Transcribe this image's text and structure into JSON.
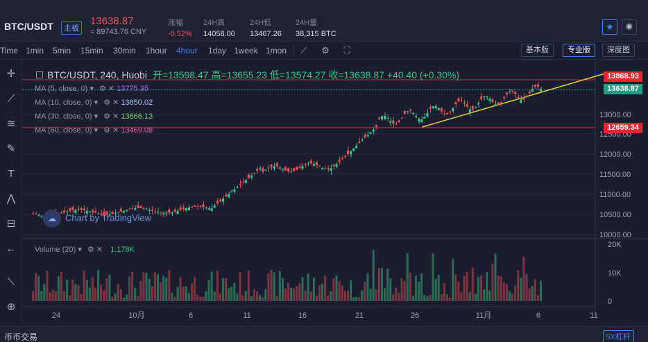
{
  "header": {
    "pair": "BTC/USDT",
    "board": "主板",
    "price": "13638.87",
    "cny": "≈ 89743.76 CNY",
    "stats": [
      {
        "label": "涨幅",
        "value": "-0.52%",
        "red": true
      },
      {
        "label": "24H高",
        "value": "14058.00",
        "red": false
      },
      {
        "label": "24H低",
        "value": "13467.26",
        "red": false
      },
      {
        "label": "24H量",
        "value": "38,315 BTC",
        "red": false
      }
    ]
  },
  "toolbar": {
    "intervals": [
      "Time",
      "1min",
      "5min",
      "15min",
      "30min",
      "1hour",
      "4hour",
      "1day",
      "1week",
      "1mon"
    ],
    "active_interval": "4hour",
    "modes": [
      "基本版",
      "专业版",
      "深度图"
    ],
    "active_mode": "专业版"
  },
  "chart": {
    "symbol_line": "BTC/USDT, 240, Huobi",
    "ohlc": "开=13598.47  高=13655.23  低=13574.27  收=13638.87  +40.40 (+0.30%)",
    "ma": [
      {
        "label": "MA (5, close, 0)",
        "value": "13775.35",
        "color": "#a56bff"
      },
      {
        "label": "MA (10, close, 0)",
        "value": "13650.02",
        "color": "#9ec3ff"
      },
      {
        "label": "MA (30, close, 0)",
        "value": "13666.13",
        "color": "#7ecf6f"
      },
      {
        "label": "MA (60, close, 0)",
        "value": "13469.08",
        "color": "#e05cb0"
      }
    ],
    "volume_label": "Volume (20)",
    "volume_value": "1.178K",
    "watermark": "Chart by TradingView",
    "price_axis": [
      "13000.00",
      "12500.00",
      "12000.00",
      "11500.00",
      "11000.00",
      "10500.00",
      "10000.00"
    ],
    "price_tags": [
      {
        "text": "13868.93",
        "color": "#e8262f"
      },
      {
        "text": "13638.87",
        "color": "#1f9e84"
      },
      {
        "text": "12659.34",
        "color": "#e8262f"
      }
    ],
    "vol_axis": [
      "20K",
      "10K",
      "0"
    ],
    "x_axis": [
      "24",
      "10月",
      "6",
      "11",
      "16",
      "21",
      "26",
      "11月",
      "6",
      "11"
    ]
  },
  "bottom": {
    "left": "币币交易",
    "right": "5X杠杆"
  },
  "icons": [
    "star-icon",
    "settings-icon",
    "crosshair-icon",
    "trendline-icon",
    "fib-icon",
    "brush-icon",
    "text-icon",
    "pattern-icon",
    "measure-icon",
    "arrow-left-icon",
    "ruler-icon",
    "zoom-icon"
  ]
}
